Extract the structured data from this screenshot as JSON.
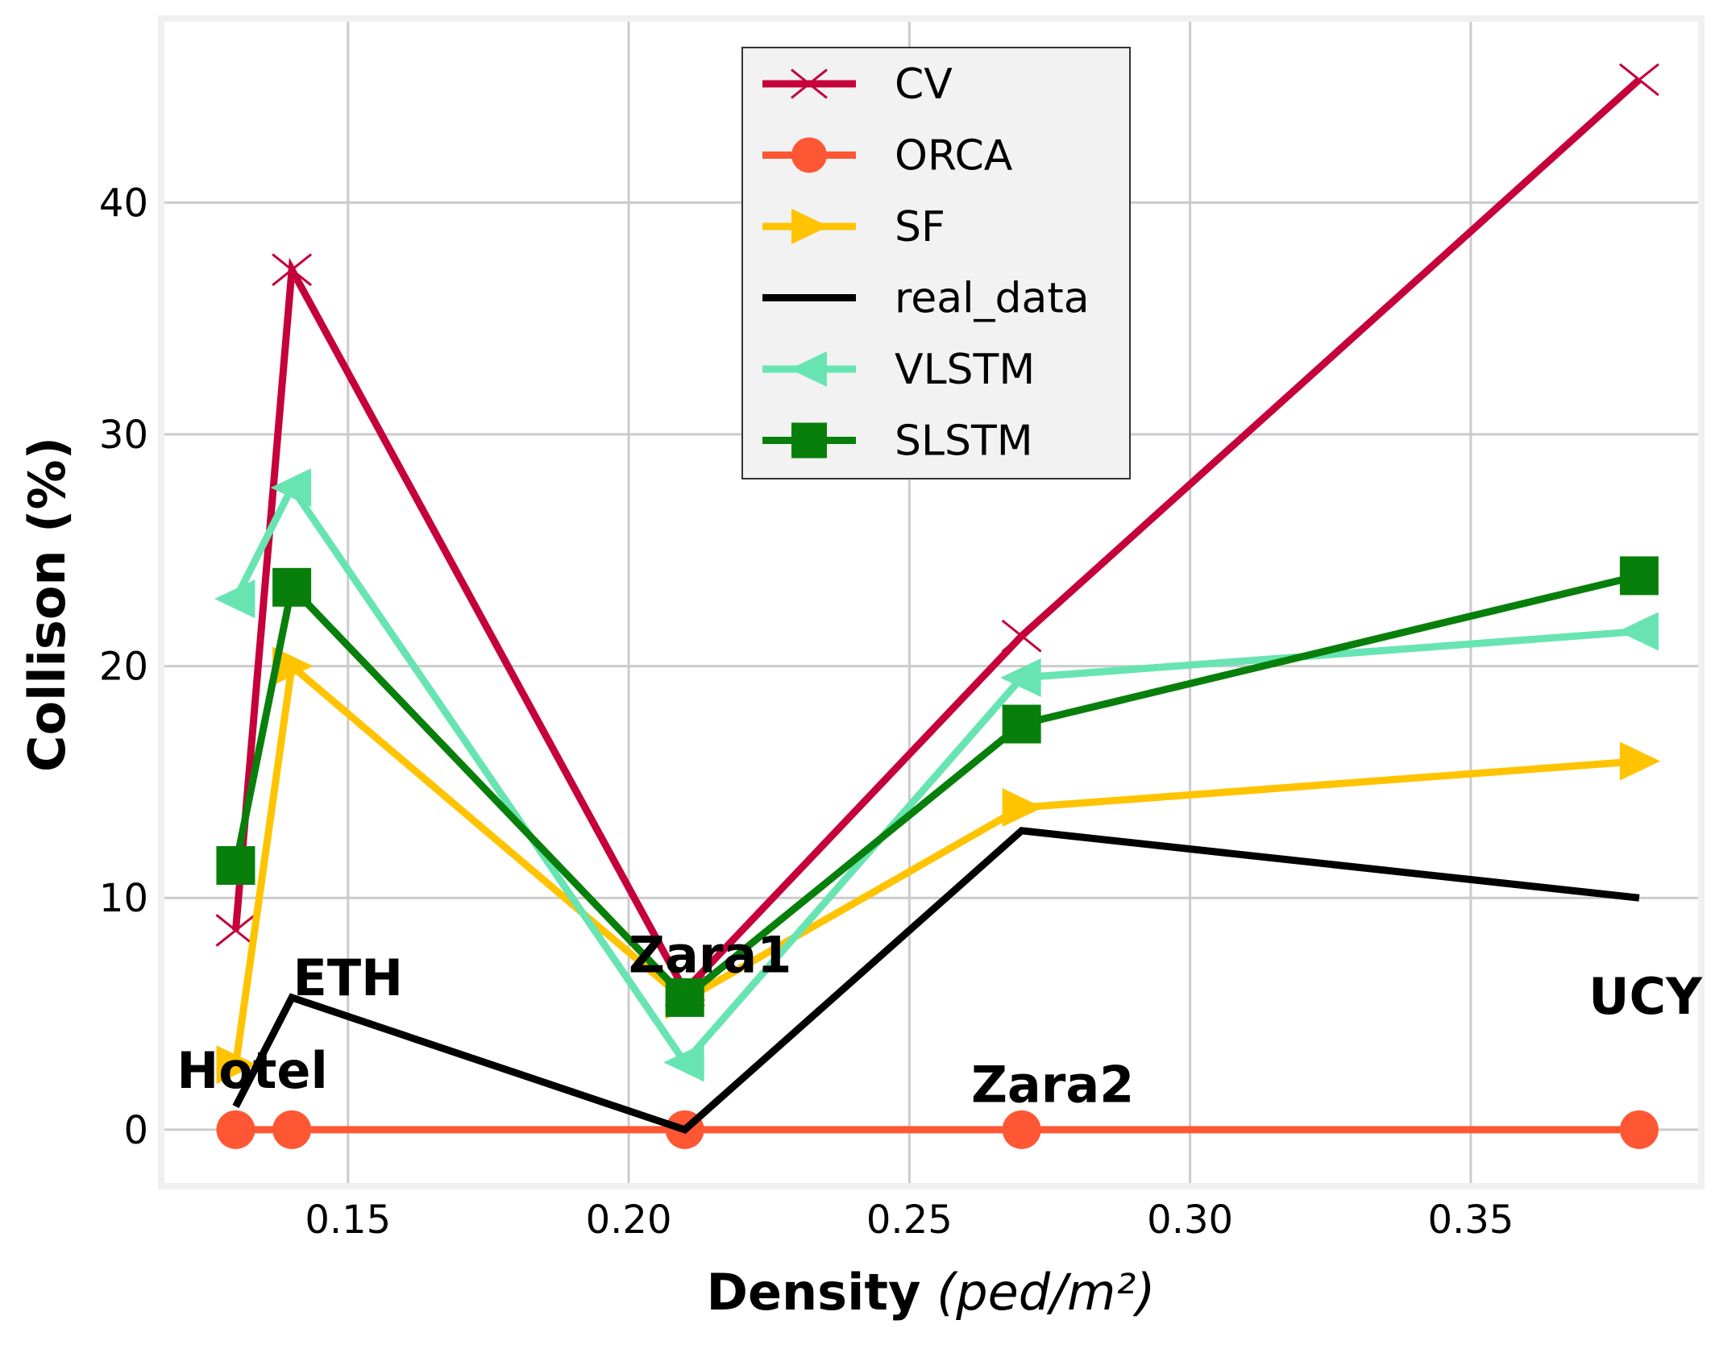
{
  "chart_data": {
    "type": "line",
    "title": "",
    "xlabel": "Density",
    "xlabel_unit": "(ped/m²)",
    "ylabel": "Collison (%)",
    "xlim": [
      0.1173,
      0.3905
    ],
    "ylim": [
      -2.3,
      47.8
    ],
    "xticks": [
      0.15,
      0.2,
      0.25,
      0.3,
      0.35
    ],
    "xtick_labels": [
      "0.15",
      "0.20",
      "0.25",
      "0.30",
      "0.35"
    ],
    "yticks": [
      0,
      10,
      20,
      30,
      40
    ],
    "ytick_labels": [
      "0",
      "10",
      "20",
      "30",
      "40"
    ],
    "grid": true,
    "legend_position": "top-center",
    "x": [
      0.13,
      0.14,
      0.21,
      0.27,
      0.38
    ],
    "series": [
      {
        "name": "CV",
        "color": "#c5003a",
        "marker": "x",
        "values": [
          8.6,
          37.1,
          6.0,
          21.3,
          45.3
        ]
      },
      {
        "name": "ORCA",
        "color": "#ff5733",
        "marker": "circle",
        "values": [
          0,
          0,
          0,
          0,
          0
        ]
      },
      {
        "name": "SF",
        "color": "#ffc300",
        "marker": "triangle-right",
        "values": [
          2.8,
          20.0,
          5.6,
          13.9,
          15.9
        ]
      },
      {
        "name": "real_data",
        "color": "#000000",
        "marker": "none",
        "values": [
          1.0,
          5.7,
          0.0,
          12.9,
          10.0
        ]
      },
      {
        "name": "VLSTM",
        "color": "#68e4b3",
        "marker": "triangle-left",
        "values": [
          22.9,
          27.7,
          2.9,
          19.5,
          21.5
        ]
      },
      {
        "name": "SLSTM",
        "color": "#087f0b",
        "marker": "square",
        "values": [
          11.4,
          23.4,
          5.7,
          17.5,
          23.9
        ]
      }
    ],
    "annotations": [
      {
        "text": "Hotel",
        "x": 0.1195,
        "y": 1.8
      },
      {
        "text": "ETH",
        "x": 0.1402,
        "y": 5.8
      },
      {
        "text": "Zara1",
        "x": 0.2,
        "y": 6.8
      },
      {
        "text": "Zara2",
        "x": 0.261,
        "y": 1.2
      },
      {
        "text": "UCY",
        "x": 0.371,
        "y": 5.0
      }
    ]
  }
}
